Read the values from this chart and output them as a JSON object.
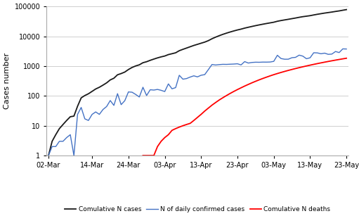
{
  "ylabel": "Cases number",
  "line_colors": {
    "daily": "#4472C4",
    "cumulative": "#1a1a1a",
    "deaths": "#FF0000"
  },
  "legend_labels": [
    "N of daily confirmed cases",
    "Comulative N cases",
    "Comulative N deaths"
  ],
  "xtick_labels": [
    "02-Mar",
    "14-Mar",
    "24-Mar",
    "03-Apr",
    "13-Apr",
    "23-Apr",
    "03-May",
    "13-May",
    "23-May"
  ],
  "xtick_positions": [
    0,
    12,
    22,
    32,
    42,
    52,
    62,
    72,
    82
  ],
  "background_color": "#ffffff",
  "grid_color": "#c8c8c8",
  "cum_cases": [
    1,
    3,
    5,
    8,
    11,
    15,
    20,
    21,
    45,
    86,
    103,
    118,
    142,
    171,
    195,
    230,
    274,
    344,
    392,
    511,
    562,
    631,
    767,
    900,
    1012,
    1104,
    1299,
    1402,
    1563,
    1720,
    1885,
    2039,
    2179,
    2432,
    2605,
    2795,
    3287,
    3651,
    4033,
    4462,
    4934,
    5369,
    5862,
    6380,
    7142,
    8274,
    9362,
    10484,
    11631,
    12772,
    13930,
    15102,
    16299,
    17395,
    18811,
    20077,
    21402,
    22753,
    24097,
    25459,
    26818,
    28189,
    29631,
    31938,
    33731,
    35432,
    37136,
    39048,
    41014,
    43345,
    45507,
    47274,
    49176,
    51980,
    54752,
    57345,
    60064,
    62545,
    65077,
    68166,
    71012,
    74795,
    78541
  ],
  "daily_cases": [
    1,
    2,
    2,
    3,
    3,
    4,
    5,
    1,
    24,
    41,
    17,
    15,
    24,
    29,
    24,
    35,
    44,
    70,
    48,
    119,
    51,
    69,
    136,
    133,
    112,
    92,
    195,
    103,
    161,
    157,
    165,
    154,
    140,
    253,
    173,
    190,
    492,
    364,
    382,
    429,
    472,
    435,
    493,
    518,
    762,
    1132,
    1088,
    1122,
    1147,
    1141,
    1158,
    1172,
    1197,
    1096,
    1416,
    1266,
    1325,
    1351,
    1344,
    1362,
    1359,
    1371,
    1442,
    2307,
    1793,
    1701,
    1704,
    1912,
    1966,
    2331,
    2162,
    1767,
    1902,
    2804,
    2772,
    2593,
    2719,
    2481,
    2532,
    3089,
    2846,
    3783,
    3746
  ],
  "cum_deaths": [
    0,
    0,
    0,
    0,
    0,
    0,
    0,
    0,
    0,
    0,
    0,
    0,
    0,
    0,
    0,
    0,
    0,
    0,
    0,
    0,
    0,
    0,
    0,
    0,
    0,
    0,
    1,
    1,
    1,
    1,
    2,
    3,
    4,
    5,
    7,
    8,
    9,
    10,
    11,
    12,
    15,
    19,
    24,
    31,
    39,
    49,
    60,
    73,
    87,
    103,
    121,
    141,
    163,
    187,
    214,
    243,
    275,
    309,
    346,
    385,
    426,
    470,
    516,
    563,
    612,
    663,
    716,
    771,
    828,
    887,
    948,
    1011,
    1076,
    1143,
    1212,
    1283,
    1356,
    1431,
    1508,
    1587,
    1668,
    1751,
    1836
  ],
  "ylim": [
    1,
    100000
  ],
  "yticks": [
    1,
    10,
    100,
    1000,
    10000,
    100000
  ],
  "ytick_labels": [
    "1",
    "10",
    "100",
    "1000",
    "10000",
    "100000"
  ]
}
